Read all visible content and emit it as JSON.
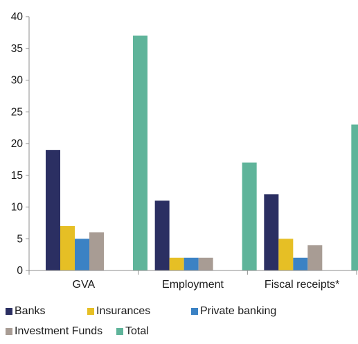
{
  "chart_data": {
    "type": "bar",
    "title": "",
    "xlabel": "",
    "ylabel": "",
    "categories": [
      "GVA",
      "Employment",
      "Fiscal receipts*"
    ],
    "ylim": [
      0,
      40
    ],
    "yticks": [
      0,
      5,
      10,
      15,
      20,
      25,
      30,
      35,
      40
    ],
    "grid": false,
    "legend_position": "bottom",
    "series": [
      {
        "name": "Banks",
        "color": "#2b2f62",
        "values": [
          19,
          11,
          12
        ]
      },
      {
        "name": "Insurances",
        "color": "#e6bf25",
        "values": [
          7,
          2,
          5
        ]
      },
      {
        "name": "Private banking",
        "color": "#3b82c4",
        "values": [
          5,
          2,
          2
        ]
      },
      {
        "name": "Investment Funds",
        "color": "#a89c94",
        "values": [
          6,
          2,
          4
        ]
      },
      {
        "name": "Total",
        "color": "#5fb49a",
        "values": [
          37,
          17,
          23
        ]
      }
    ]
  }
}
